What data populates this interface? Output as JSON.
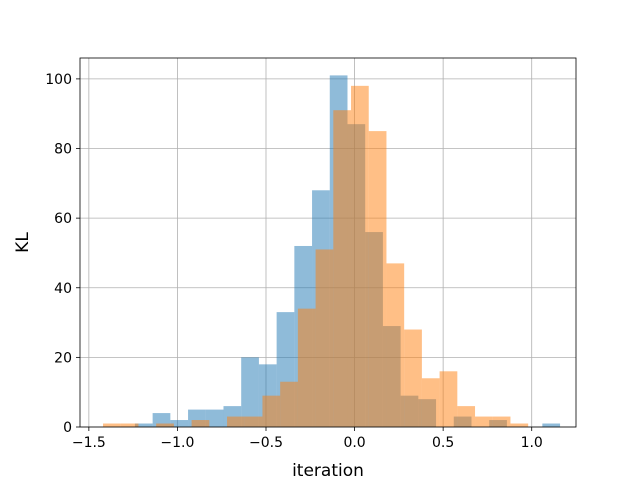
{
  "chart_data": {
    "type": "bar",
    "title": "",
    "xlabel": "iteration",
    "ylabel": "KL",
    "xlim": [
      -1.55,
      1.25
    ],
    "ylim": [
      0,
      106
    ],
    "xticks": [
      -1.5,
      -1.0,
      -0.5,
      0.0,
      0.5,
      1.0
    ],
    "xtick_labels": [
      "−1.5",
      "−1.0",
      "−0.5",
      "0.0",
      "0.5",
      "1.0"
    ],
    "yticks": [
      0,
      20,
      40,
      60,
      80,
      100
    ],
    "ytick_labels": [
      "0",
      "20",
      "40",
      "60",
      "80",
      "100"
    ],
    "grid": true,
    "series": [
      {
        "color": "#1f77b4",
        "opacity": 0.5,
        "bin_edges": [
          -1.24,
          -1.14,
          -1.04,
          -0.94,
          -0.84,
          -0.74,
          -0.64,
          -0.54,
          -0.44,
          -0.34,
          -0.24,
          -0.14,
          -0.04,
          0.06,
          0.16,
          0.26,
          0.36,
          0.46,
          0.56,
          0.66,
          0.76,
          0.86,
          0.96,
          1.06,
          1.16
        ],
        "values": [
          1,
          4,
          2,
          5,
          5,
          6,
          20,
          18,
          33,
          52,
          68,
          101,
          87,
          56,
          29,
          9,
          8,
          0,
          3,
          0,
          2,
          0,
          0,
          1
        ]
      },
      {
        "color": "#ff7f0e",
        "opacity": 0.5,
        "bin_edges": [
          -1.42,
          -1.32,
          -1.22,
          -1.12,
          -1.02,
          -0.92,
          -0.82,
          -0.72,
          -0.62,
          -0.52,
          -0.42,
          -0.32,
          -0.22,
          -0.12,
          -0.02,
          0.08,
          0.18,
          0.28,
          0.38,
          0.48,
          0.58,
          0.68,
          0.78,
          0.88,
          0.98
        ],
        "values": [
          1,
          1,
          0,
          1,
          0,
          2,
          0,
          3,
          3,
          9,
          13,
          34,
          51,
          91,
          98,
          85,
          47,
          28,
          14,
          16,
          6,
          3,
          3,
          1
        ]
      }
    ]
  }
}
